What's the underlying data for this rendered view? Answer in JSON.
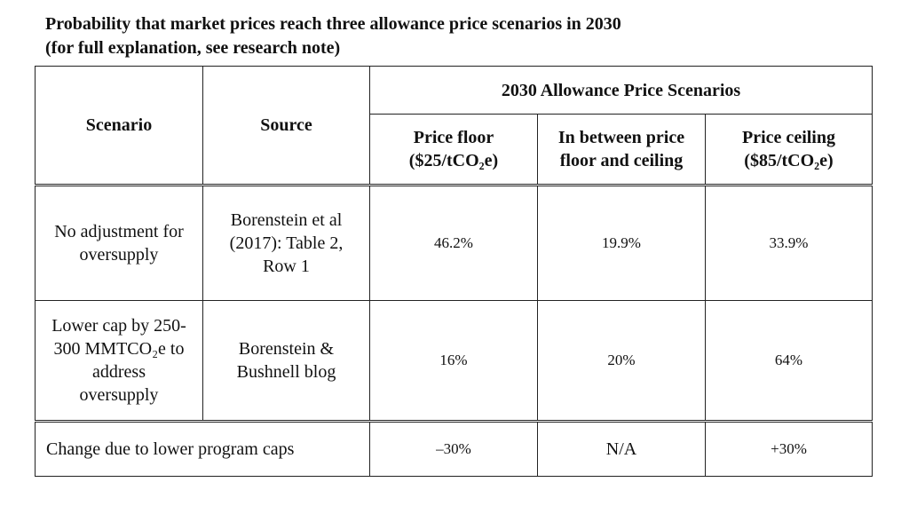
{
  "title": {
    "line1": "Probability that market prices reach three allowance price scenarios in 2030",
    "line2": "(for full explanation, see research note)"
  },
  "table": {
    "col_scenario": "Scenario",
    "col_source": "Source",
    "group_header": "2030 Allowance Price Scenarios",
    "sub_headers": {
      "floor_line1": "Price floor",
      "floor_line2": "($25/tCO₂e)",
      "between_line1": "In between price",
      "between_line2": "floor and ceiling",
      "ceiling_line1": "Price ceiling",
      "ceiling_line2": "($85/tCO₂e)"
    },
    "rows": [
      {
        "scenario_lines": [
          "No adjustment for",
          "oversupply"
        ],
        "source_lines": [
          "Borenstein et al",
          "(2017): Table 2,",
          "Row 1"
        ],
        "floor": "46.2%",
        "between": "19.9%",
        "ceiling": "33.9%"
      },
      {
        "scenario_lines": [
          "Lower cap by 250-",
          "300 MMTCO₂e to",
          "address",
          "oversupply"
        ],
        "source_lines": [
          "Borenstein &",
          "Bushnell blog"
        ],
        "floor": "16%",
        "between": "20%",
        "ceiling": "64%"
      }
    ],
    "change_row": {
      "label": "Change due to lower program caps",
      "floor": "–30%",
      "between": "N/A",
      "ceiling": "+30%"
    }
  }
}
